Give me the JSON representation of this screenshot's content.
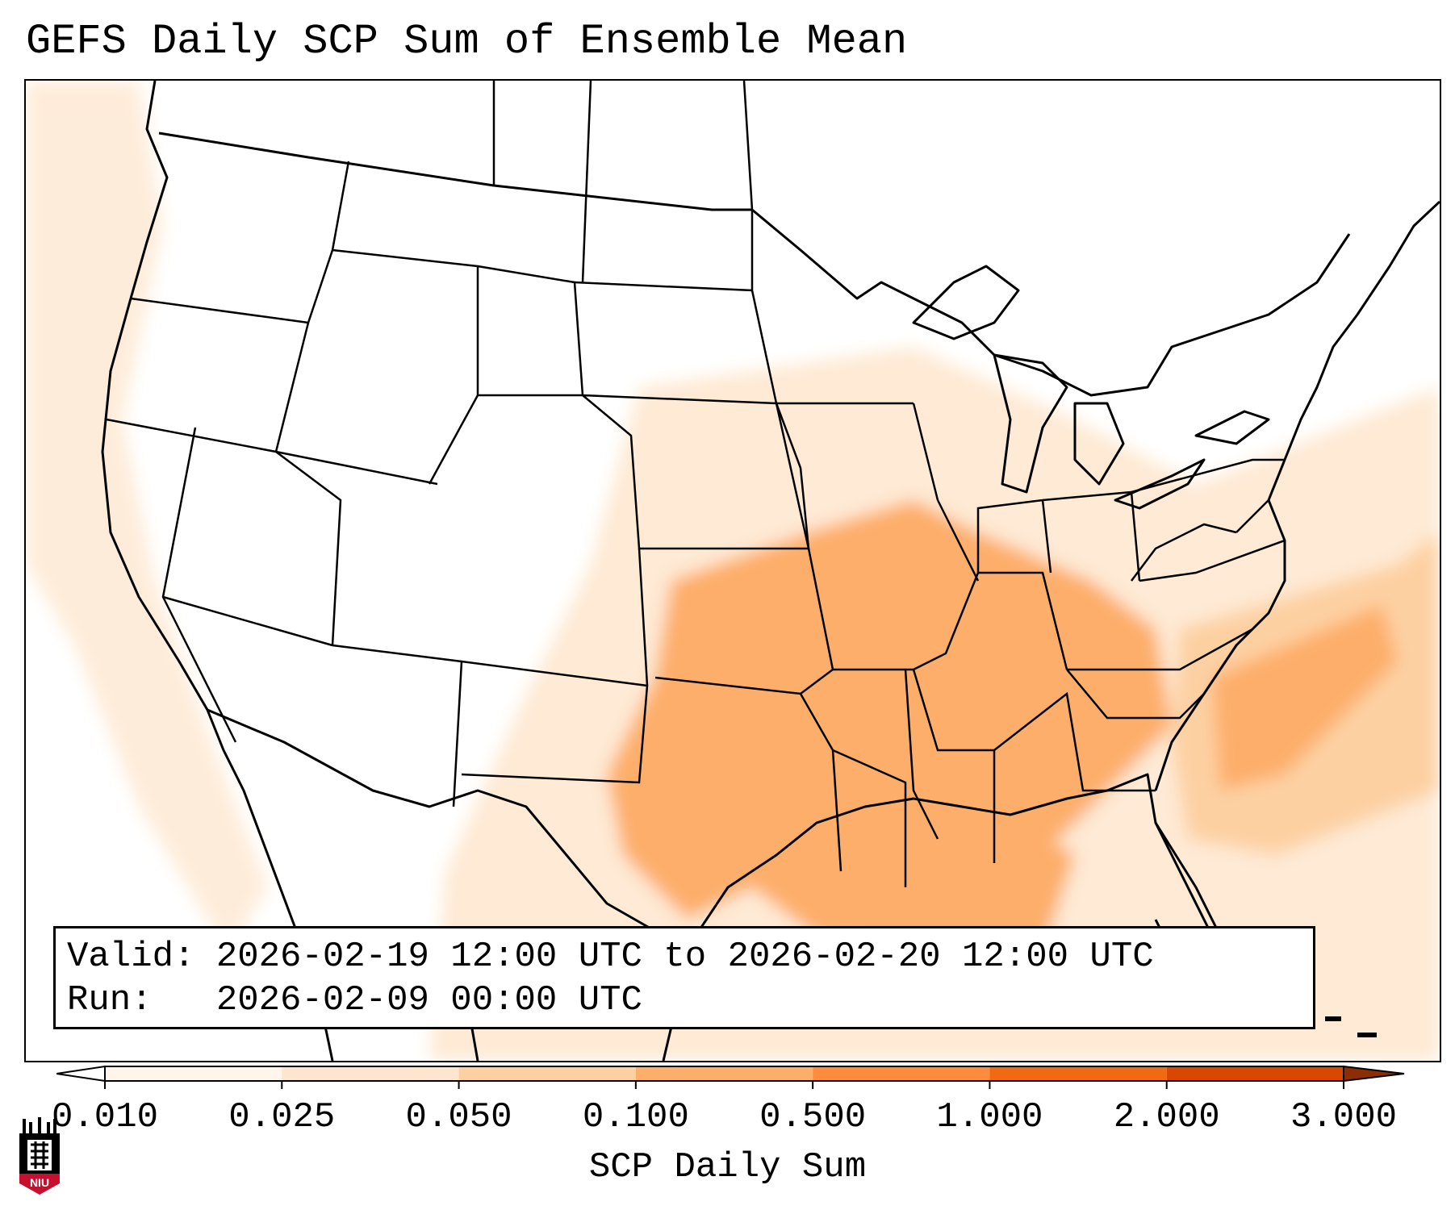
{
  "title": "GEFS Daily SCP Sum of Ensemble Mean",
  "info": {
    "valid_label": "Valid:",
    "valid_value": "2026-02-19 12:00 UTC to 2026-02-20 12:00 UTC",
    "run_label": "Run:",
    "run_value": "2026-02-09 00:00 UTC"
  },
  "colorbar": {
    "title": "SCP Daily Sum",
    "ticks": [
      "0.010",
      "0.025",
      "0.050",
      "0.100",
      "0.500",
      "1.000",
      "2.000",
      "3.000"
    ],
    "colors": [
      "#fff5eb",
      "#fee6ce",
      "#fdd0a2",
      "#fdae6b",
      "#fd8d3c",
      "#f16913",
      "#d94801"
    ],
    "under_color": "#ffffff",
    "over_color": "#8c2d04"
  },
  "logo": {
    "text": "NIU",
    "color": "#c8102e"
  }
}
